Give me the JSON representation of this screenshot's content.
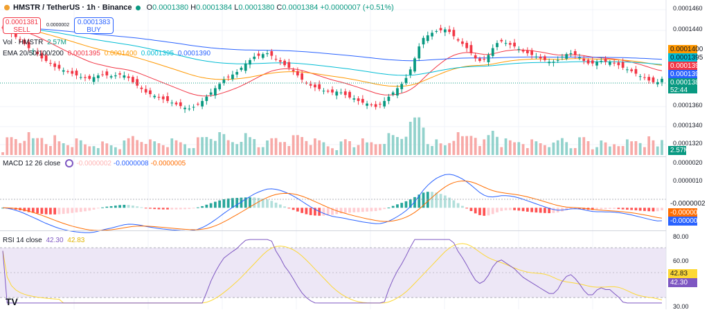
{
  "header": {
    "symbol": "HMSTR / TetherUS · 1h · Binance",
    "o_label": "O",
    "o_value": "0.0001380",
    "h_label": "H",
    "h_value": "0.0001384",
    "l_label": "L",
    "l_value": "0.0001380",
    "c_label": "C",
    "c_value": "0.0001384",
    "change": "+0.0000007 (+0.51%)"
  },
  "trade": {
    "sell_price": "0.0001381",
    "sell_label": "SELL",
    "buy_price": "0.0001383",
    "buy_label": "BUY",
    "spread": "0.0000002"
  },
  "volume_legend": {
    "label": "Vol · HMSTR",
    "value": "2.57M"
  },
  "ema_legend": {
    "label": "EMA 20/50/100/200",
    "v20": "0.0001395",
    "v50": "0.0001400",
    "v100": "0.0001395",
    "v200": "0.0001390"
  },
  "macd_legend": {
    "label": "MACD 12 26 close",
    "hist": "-0.0000002",
    "macd": "-0.0000008",
    "signal": "-0.0000005"
  },
  "rsi_legend": {
    "label": "RSI 14 close",
    "rsi": "42.30",
    "ma": "42.83"
  },
  "price_axis": {
    "ticks": [
      "0.0001460",
      "0.0001440",
      "0.0001360",
      "0.0001340",
      "0.0001320"
    ],
    "tags": [
      "0.0001400",
      "0.0001395",
      "0.0001395",
      "0.0001390",
      "0.0001384"
    ],
    "countdown": "52:44",
    "volume_tag": "2.57M"
  },
  "macd_axis": {
    "ticks": [
      "0.0000020",
      "0.0000010"
    ],
    "tags": [
      "-0.0000002",
      "-0.0000005",
      "-0.0000008"
    ]
  },
  "rsi_axis": {
    "ticks": [
      "80.00",
      "60.00",
      "30.00"
    ],
    "tags": [
      "42.83",
      "42.30"
    ]
  },
  "logo": "TV",
  "colors": {
    "up": "#089981",
    "down": "#f23645",
    "up_vol": "#92d2cc",
    "down_vol": "#f7a9a7",
    "ema20": "#f23645",
    "ema50": "#ff9800",
    "ema100": "#00bcd4",
    "ema200": "#2962ff",
    "macd": "#2962ff",
    "signal": "#ff6d00",
    "hist_up_strong": "#26a69a",
    "hist_up_weak": "#b2dfdb",
    "hist_down_strong": "#ff5252",
    "hist_down_weak": "#ffcdd2",
    "rsi": "#7e57c2",
    "rsi_ma": "#fdd835",
    "rsi_band": "#ede7f6"
  },
  "chart_data": {
    "type": "candlestick",
    "title": "HMSTR / TetherUS · 1h · Binance",
    "ylim_price": [
      0.000131,
      0.000147
    ],
    "close": [
      0.0001444,
      0.0001441,
      0.0001437,
      0.0001433,
      0.000143,
      0.0001425,
      0.000142,
      0.0001417,
      0.0001413,
      0.0001408,
      0.0001405,
      0.0001402,
      0.0001398,
      0.0001396,
      0.0001394,
      0.0001392,
      0.000139,
      0.0001388,
      0.0001386,
      0.0001385,
      0.0001384,
      0.0001386,
      0.0001388,
      0.0001389,
      0.0001388,
      0.0001387,
      0.0001388,
      0.0001389,
      0.0001388,
      0.0001385,
      0.000138,
      0.0001376,
      0.0001372,
      0.0001368,
      0.0001366,
      0.0001364,
      0.0001362,
      0.000136,
      0.0001358,
      0.0001356,
      0.0001354,
      0.0001352,
      0.000135,
      0.0001349,
      0.0001351,
      0.0001354,
      0.0001358,
      0.0001363,
      0.0001368,
      0.0001373,
      0.0001378,
      0.0001383,
      0.0001386,
      0.0001389,
      0.0001392,
      0.0001397,
      0.0001402,
      0.0001406,
      0.000141,
      0.0001411,
      0.0001413,
      0.0001414,
      0.0001411,
      0.0001407,
      0.0001404,
      0.00014,
      0.0001397,
      0.0001393,
      0.0001388,
      0.0001383,
      0.0001379,
      0.0001376,
      0.0001374,
      0.0001372,
      0.000137,
      0.0001369,
      0.0001368,
      0.0001369,
      0.0001368,
      0.0001365,
      0.0001362,
      0.0001361,
      0.0001358,
      0.0001356,
      0.0001355,
      0.0001353,
      0.0001351,
      0.0001354,
      0.0001358,
      0.0001363,
      0.0001368,
      0.0001373,
      0.0001378,
      0.0001385,
      0.0001395,
      0.0001408,
      0.0001422,
      0.0001432,
      0.0001435,
      0.0001438,
      0.000144,
      0.0001441,
      0.0001442,
      0.0001439,
      0.0001434,
      0.0001429,
      0.0001425,
      0.000142,
      0.0001414,
      0.0001408,
      0.0001405,
      0.0001407,
      0.0001412,
      0.000142,
      0.0001426,
      0.0001428,
      0.0001426,
      0.0001424,
      0.0001422,
      0.0001419,
      0.0001416,
      0.0001414,
      0.0001412,
      0.000141,
      0.0001408,
      0.0001406,
      0.0001404,
      0.0001404,
      0.0001406,
      0.000141,
      0.0001413,
      0.0001414,
      0.0001412,
      0.0001409,
      0.0001405,
      0.0001402,
      0.0001402,
      0.0001404,
      0.0001405,
      0.0001404,
      0.0001404,
      0.0001402,
      0.00014,
      0.0001397,
      0.0001395,
      0.0001393,
      0.000139,
      0.0001387,
      0.0001385,
      0.0001382,
      0.000138,
      0.000138,
      0.0001384
    ],
    "rsi_ylim": [
      30,
      80
    ],
    "macd_ylim": [
      -1e-06,
      2.5e-06
    ]
  }
}
